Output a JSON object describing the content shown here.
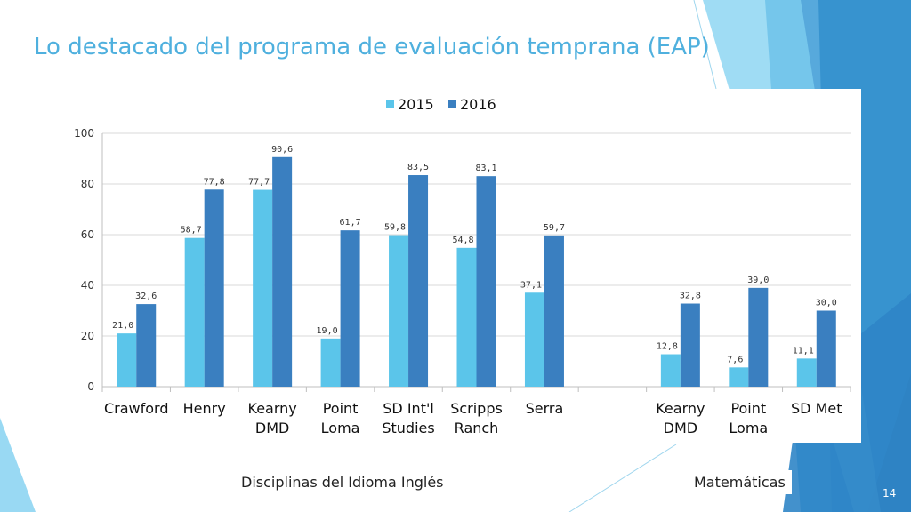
{
  "slide": {
    "title": "Lo destacado del programa de evaluación temprana (EAP)",
    "ela_label": "Disciplinas del Idioma Inglés",
    "math_label": "Matemáticas",
    "page_number": "14"
  },
  "colors": {
    "series_2015": "#5bc5ea",
    "series_2016": "#3a7fc0",
    "title": "#4fb0de",
    "deco_dark": "#2b6da8",
    "deco_mid": "#3a9ad6",
    "deco_light": "#7fd0f0"
  },
  "chart_data": {
    "type": "bar",
    "title": "",
    "xlabel": "",
    "ylabel": "",
    "ylim": [
      0,
      100
    ],
    "yticks": [
      "0",
      "20",
      "40",
      "60",
      "80",
      "100"
    ],
    "legend_position": "top-center",
    "grid": true,
    "categories": [
      "Crawford",
      "Henry",
      "Kearny DMD",
      "Point Loma",
      "SD Int'l Studies",
      "Scripps Ranch",
      "Serra",
      "",
      "Kearny DMD",
      "Point Loma",
      "SD Met"
    ],
    "category_lines": [
      [
        "Crawford"
      ],
      [
        "Henry"
      ],
      [
        "Kearny",
        "DMD"
      ],
      [
        "Point",
        "Loma"
      ],
      [
        "SD Int'l",
        "Studies"
      ],
      [
        "Scripps",
        "Ranch"
      ],
      [
        "Serra"
      ],
      [],
      [
        "Kearny",
        "DMD"
      ],
      [
        "Point",
        "Loma"
      ],
      [
        "SD Met"
      ]
    ],
    "series": [
      {
        "name": "2015",
        "values": [
          21.0,
          58.7,
          77.7,
          19.0,
          59.8,
          54.8,
          37.1,
          null,
          12.8,
          7.6,
          11.1
        ],
        "labels": [
          "21,0",
          "58,7",
          "77,7",
          "19,0",
          "59,8",
          "54,8",
          "37,1",
          "",
          "12,8",
          "7,6",
          "11,1"
        ]
      },
      {
        "name": "2016",
        "values": [
          32.6,
          77.8,
          90.6,
          61.7,
          83.5,
          83.1,
          59.7,
          null,
          32.8,
          39.0,
          30.0
        ],
        "labels": [
          "32,6",
          "77,8",
          "90,6",
          "61,7",
          "83,5",
          "83,1",
          "59,7",
          "",
          "32,8",
          "39,0",
          "30,0"
        ]
      }
    ]
  }
}
